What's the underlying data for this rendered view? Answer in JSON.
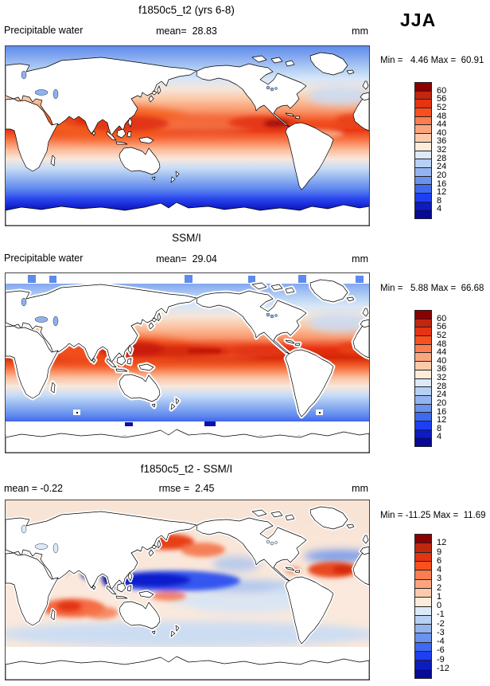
{
  "figure": {
    "season_label": "JJA",
    "variable": "Precipitable water",
    "units": "mm"
  },
  "palette": [
    "#8B0000",
    "#C1270E",
    "#E33414",
    "#FA501E",
    "#FA7E4F",
    "#FBA57F",
    "#FCCAAB",
    "#FDEBDC",
    "#DBE9F9",
    "#B7D0F4",
    "#93B4F0",
    "#6A93ED",
    "#3D6AF0",
    "#1E3FF0",
    "#0E1BBE",
    "#060A96"
  ],
  "panels": [
    {
      "id": "model",
      "title": "f1850c5_t2 (yrs 6-8)",
      "left_label": "Precipitable water",
      "center_stat": "mean=  28.83",
      "units_label": "mm",
      "minmax": "Min =   4.46 Max =  60.91",
      "colorbar_labels": [
        "60",
        "56",
        "52",
        "48",
        "44",
        "40",
        "36",
        "32",
        "28",
        "24",
        "20",
        "16",
        "12",
        "8",
        "4"
      ]
    },
    {
      "id": "obs",
      "title": "SSM/I",
      "left_label": "Precipitable water",
      "center_stat": "mean=  29.04",
      "units_label": "mm",
      "minmax": "Min =   5.88 Max =  66.68",
      "colorbar_labels": [
        "60",
        "56",
        "52",
        "48",
        "44",
        "40",
        "36",
        "32",
        "28",
        "24",
        "20",
        "16",
        "12",
        "8",
        "4"
      ]
    },
    {
      "id": "diff",
      "title": "f1850c5_t2 - SSM/I",
      "left_label": "mean = -0.22",
      "center_stat": "rmse =  2.45",
      "units_label": "mm",
      "minmax": "Min = -11.25 Max =  11.69",
      "colorbar_labels": [
        "12",
        "9",
        "6",
        "4",
        "3",
        "2",
        "1",
        "0",
        "-1",
        "-2",
        "-3",
        "-4",
        "-6",
        "-9",
        "-12"
      ]
    }
  ],
  "chart_data": [
    {
      "type": "heatmap",
      "panel": "top",
      "title": "f1850c5_t2 (yrs 6-8)",
      "variable": "Precipitable water",
      "units": "mm",
      "season": "JJA",
      "mean": 28.83,
      "min": 4.46,
      "max": 60.91,
      "contour_levels": [
        4,
        8,
        12,
        16,
        20,
        24,
        28,
        32,
        36,
        40,
        44,
        48,
        52,
        56,
        60
      ],
      "projection": "global cylindrical lat-lon, Pacific-centered",
      "masking": "land masked white; high values >48 mm across tropical Indo-Pacific warm pool and ITCZ, <8 mm at high latitudes"
    },
    {
      "type": "heatmap",
      "panel": "middle",
      "title": "SSM/I",
      "variable": "Precipitable water",
      "units": "mm",
      "season": "JJA",
      "mean": 29.04,
      "min": 5.88,
      "max": 66.68,
      "contour_levels": [
        4,
        8,
        12,
        16,
        20,
        24,
        28,
        32,
        36,
        40,
        44,
        48,
        52,
        56,
        60
      ],
      "projection": "global cylindrical lat-lon, Pacific-centered",
      "masking": "ocean-only satellite retrieval; blocky white margins along coasts, white poleward of ~60S, maxima >60 mm in Bay of Bengal and west Pacific"
    },
    {
      "type": "heatmap",
      "panel": "bottom",
      "title": "f1850c5_t2 - SSM/I",
      "variable": "Precipitable water difference",
      "units": "mm",
      "season": "JJA",
      "mean": -0.22,
      "rmse": 2.45,
      "min": -11.25,
      "max": 11.69,
      "contour_levels": [
        -12,
        -9,
        -6,
        -4,
        -3,
        -2,
        -1,
        0,
        1,
        2,
        3,
        4,
        6,
        9,
        12
      ],
      "projection": "global cylindrical lat-lon, Pacific-centered",
      "masking": "ocean-only; dry bias (blue, < -6 mm) over west-central equatorial Pacific, wet bias (red, > +4 mm) over Indian Ocean, North Pacific and subtropical North Atlantic"
    }
  ]
}
